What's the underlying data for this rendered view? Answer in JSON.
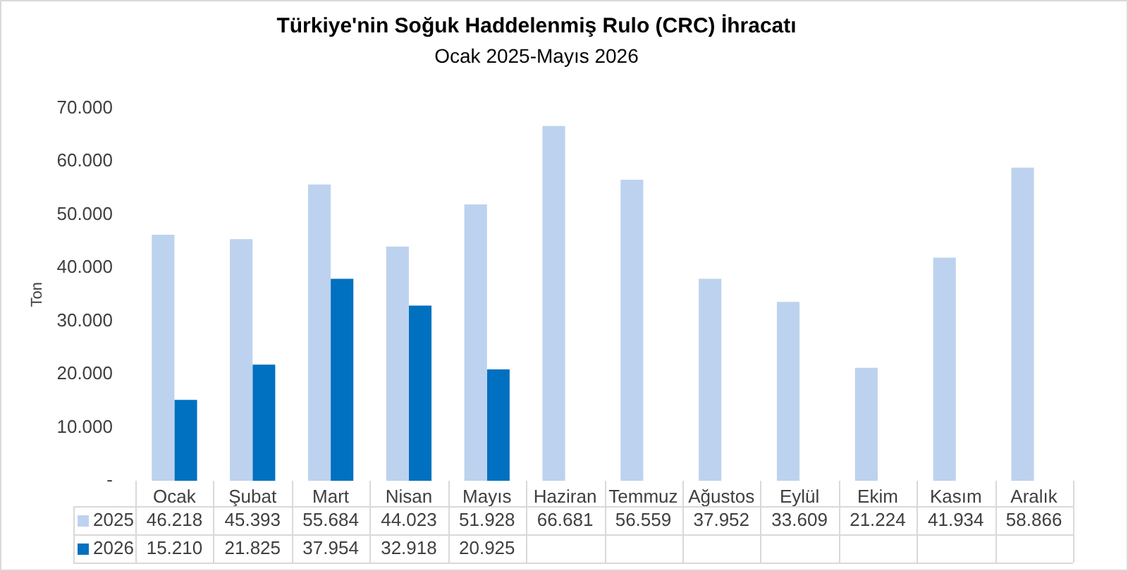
{
  "chart_data": {
    "type": "bar",
    "title": "Türkiye'nin Soğuk Haddelenmiş Rulo (CRC) İhracatı",
    "subtitle": "Ocak 2025-Mayıs 2026",
    "ylabel": "Ton",
    "categories": [
      "Ocak",
      "Şubat",
      "Mart",
      "Nisan",
      "Mayıs",
      "Haziran",
      "Temmuz",
      "Ağustos",
      "Eylül",
      "Ekim",
      "Kasım",
      "Aralık"
    ],
    "series": [
      {
        "name": "2025",
        "color": "#bdd2ee",
        "values": [
          46218,
          45393,
          55684,
          44023,
          51928,
          66681,
          56559,
          37952,
          33609,
          21224,
          41934,
          58866
        ],
        "value_labels": [
          "46.218",
          "45.393",
          "55.684",
          "44.023",
          "51.928",
          "66.681",
          "56.559",
          "37.952",
          "33.609",
          "21.224",
          "41.934",
          "58.866"
        ]
      },
      {
        "name": "2026",
        "color": "#0070c0",
        "values": [
          15210,
          21825,
          37954,
          32918,
          20925,
          null,
          null,
          null,
          null,
          null,
          null,
          null
        ],
        "value_labels": [
          "15.210",
          "21.825",
          "37.954",
          "32.918",
          "20.925",
          null,
          null,
          null,
          null,
          null,
          null,
          null
        ]
      }
    ],
    "ylim": [
      0,
      70000
    ],
    "yticks": [
      {
        "value": 0,
        "label": "-"
      },
      {
        "value": 10000,
        "label": "10.000"
      },
      {
        "value": 20000,
        "label": "20.000"
      },
      {
        "value": 30000,
        "label": "30.000"
      },
      {
        "value": 40000,
        "label": "40.000"
      },
      {
        "value": 50000,
        "label": "50.000"
      },
      {
        "value": 60000,
        "label": "60.000"
      },
      {
        "value": 70000,
        "label": "70.000"
      }
    ],
    "grid": false,
    "legend": "bottom"
  }
}
